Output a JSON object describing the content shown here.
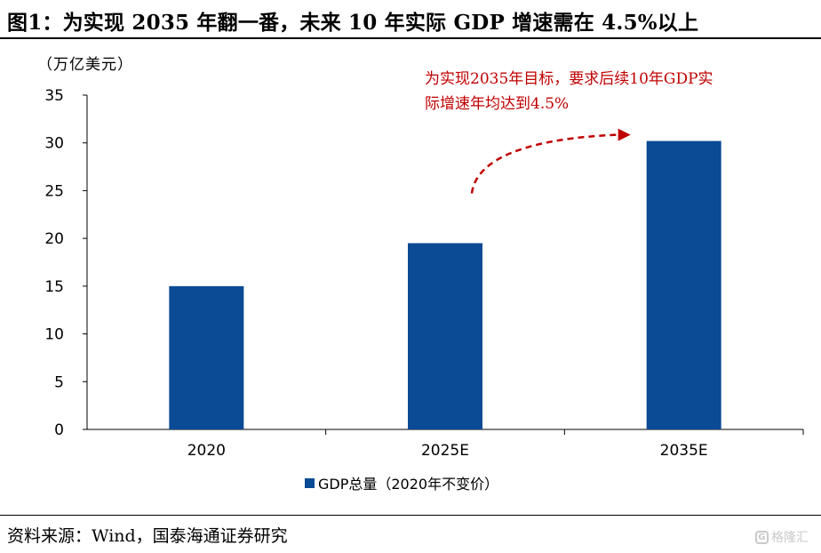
{
  "figure": {
    "title": "图1：为实现 2035 年翻一番，未来 10 年实际 GDP 增速需在 4.5%以上",
    "source": "资料来源：Wind，国泰海通证券研究",
    "watermark": "格隆汇"
  },
  "chart_data": {
    "type": "bar",
    "unit_label": "（万亿美元）",
    "categories": [
      "2020",
      "2025E",
      "2035E"
    ],
    "series": [
      {
        "name": "GDP总量（2020年不变价）",
        "values": [
          15.0,
          19.5,
          30.2
        ],
        "color": "#0b4a94"
      }
    ],
    "ylim": [
      0,
      35
    ],
    "yticks": [
      "0",
      "5",
      "10",
      "15",
      "20",
      "25",
      "30",
      "35"
    ],
    "grid": false,
    "legend": "bottom-center",
    "annotation": {
      "text": "为实现2035年目标，要求后续10年GDP实际增速年均达到4.5%",
      "color": "#c00000"
    }
  }
}
